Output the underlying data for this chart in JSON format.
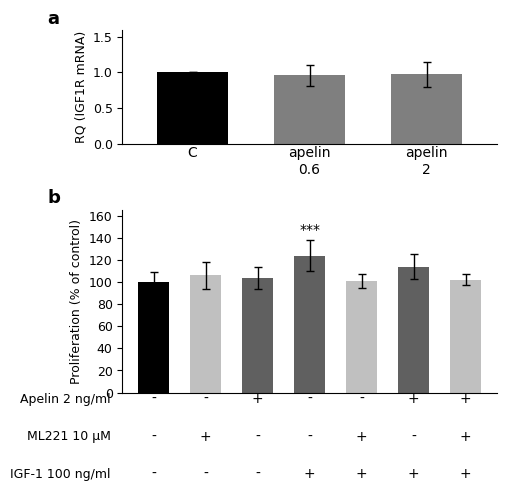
{
  "panel_a": {
    "categories": [
      "C",
      "apelin\n0.6",
      "apelin\n2"
    ],
    "values": [
      1.0,
      0.96,
      0.97
    ],
    "errors": [
      0.0,
      0.15,
      0.17
    ],
    "colors": [
      "#000000",
      "#7f7f7f",
      "#7f7f7f"
    ],
    "ylabel": "RQ (IGF1R mRNA)",
    "ylim": [
      0,
      1.6
    ],
    "yticks": [
      0.0,
      0.5,
      1.0,
      1.5
    ],
    "xlim": [
      -0.6,
      2.6
    ],
    "label": "a"
  },
  "panel_b": {
    "values": [
      100,
      106,
      104,
      124,
      101,
      114,
      102
    ],
    "errors": [
      9,
      12,
      10,
      14,
      6,
      11,
      5
    ],
    "colors": [
      "#000000",
      "#c0c0c0",
      "#606060",
      "#606060",
      "#c0c0c0",
      "#606060",
      "#c0c0c0"
    ],
    "ylabel": "Proliferation (% of control)",
    "ylim": [
      0,
      165
    ],
    "yticks": [
      0,
      20,
      40,
      60,
      80,
      100,
      120,
      140,
      160
    ],
    "xlim": [
      -0.6,
      6.6
    ],
    "label": "b",
    "significance": {
      "bar_index": 3,
      "text": "***"
    },
    "table_rows": [
      {
        "label": "Apelin 2 ng/ml",
        "values": [
          "-",
          "-",
          "+",
          "-",
          "-",
          "+",
          "+"
        ]
      },
      {
        "label": "ML221 10 μM",
        "values": [
          "-",
          "+",
          "-",
          "-",
          "+",
          "-",
          "+"
        ]
      },
      {
        "label": "IGF-1 100 ng/ml",
        "values": [
          "-",
          "-",
          "-",
          "+",
          "+",
          "+",
          "+"
        ]
      }
    ]
  },
  "figure_bg": "#ffffff",
  "bar_width": 0.6,
  "capsize": 3,
  "elinewidth": 1.0,
  "ecolor": "#000000"
}
